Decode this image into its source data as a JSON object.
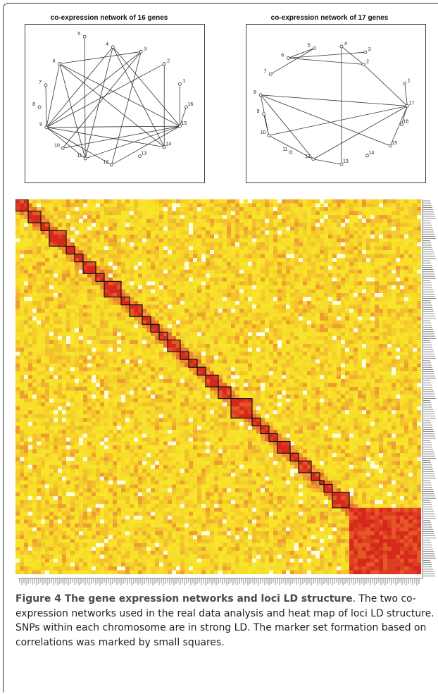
{
  "figure": {
    "networks": [
      {
        "title": "co-expression network of 16 genes",
        "nodes": [
          "1",
          "2",
          "3",
          "4",
          "5",
          "6",
          "7",
          "8",
          "9",
          "10",
          "11",
          "12",
          "13",
          "14",
          "15",
          "16"
        ],
        "edges": [
          [
            4,
            9
          ],
          [
            4,
            11
          ],
          [
            4,
            14
          ],
          [
            4,
            15
          ],
          [
            3,
            9
          ],
          [
            3,
            12
          ],
          [
            3,
            10
          ],
          [
            2,
            9
          ],
          [
            2,
            14
          ],
          [
            6,
            9
          ],
          [
            6,
            14
          ],
          [
            6,
            15
          ],
          [
            6,
            11
          ],
          [
            6,
            3
          ],
          [
            5,
            11
          ],
          [
            7,
            9
          ],
          [
            9,
            15
          ],
          [
            9,
            14
          ],
          [
            9,
            11
          ],
          [
            9,
            12
          ],
          [
            10,
            15
          ],
          [
            11,
            15
          ],
          [
            12,
            15
          ],
          [
            16,
            15
          ],
          [
            1,
            15
          ]
        ]
      },
      {
        "title": "co-expression network of 17 genes",
        "nodes": [
          "1",
          "2",
          "3",
          "4",
          "5",
          "6",
          "7",
          "8",
          "9",
          "10",
          "11",
          "12",
          "13",
          "14",
          "15",
          "16",
          "17"
        ],
        "edges": [
          [
            7,
            5
          ],
          [
            6,
            5
          ],
          [
            6,
            2
          ],
          [
            6,
            3
          ],
          [
            4,
            2
          ],
          [
            4,
            13
          ],
          [
            2,
            17
          ],
          [
            8,
            17
          ],
          [
            8,
            12
          ],
          [
            8,
            10
          ],
          [
            8,
            15
          ],
          [
            9,
            10
          ],
          [
            10,
            17
          ],
          [
            10,
            12
          ],
          [
            12,
            17
          ],
          [
            12,
            13
          ],
          [
            1,
            17
          ],
          [
            16,
            17
          ],
          [
            15,
            17
          ]
        ]
      }
    ],
    "heatmap": {
      "description_colors": {
        "high": "#d7191c",
        "mid": "#f4a340",
        "low": "#f7e01f",
        "none": "#ffffff"
      },
      "blocks": [
        3,
        3,
        2,
        4,
        2,
        2,
        3,
        2,
        4,
        2,
        3,
        2,
        2,
        2,
        3,
        2,
        2,
        2,
        3,
        3,
        5,
        2,
        2,
        2,
        3,
        2,
        3,
        2,
        1,
        2,
        4
      ]
    },
    "caption": {
      "label": "Figure 4 The gene expression networks and loci LD structure",
      "period": ".",
      "text": "The two co-expression networks used in the real data analysis and heat map of loci LD structure. SNPs within each chromosome are in strong LD. The marker set formation based on correlations was marked by small squares."
    }
  }
}
